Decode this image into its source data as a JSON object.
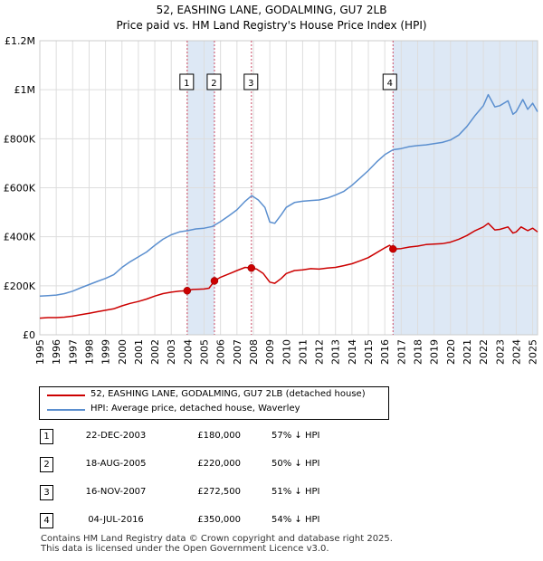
{
  "title": "52, EASHING LANE, GODALMING, GU7 2LB",
  "subtitle": "Price paid vs. HM Land Registry's House Price Index (HPI)",
  "colors": {
    "property": "#cc0000",
    "hpi": "#5b8fcf",
    "band": "#dde8f5",
    "grid": "#dddddd",
    "marker_line": "#cc4c66"
  },
  "chart_data": {
    "type": "line",
    "title": "52, EASHING LANE, GODALMING, GU7 2LB",
    "subtitle": "Price paid vs. HM Land Registry's House Price Index (HPI)",
    "xlabel": "",
    "ylabel": "",
    "xlim": [
      1995,
      2025.3
    ],
    "ylim": [
      0,
      1200000
    ],
    "yticks": [
      {
        "value": 0,
        "label": "£0"
      },
      {
        "value": 200000,
        "label": "£200K"
      },
      {
        "value": 400000,
        "label": "£400K"
      },
      {
        "value": 600000,
        "label": "£600K"
      },
      {
        "value": 800000,
        "label": "£800K"
      },
      {
        "value": 1000000,
        "label": "£1M"
      },
      {
        "value": 1200000,
        "label": "£1.2M"
      }
    ],
    "xticks": [
      "1995",
      "1996",
      "1997",
      "1998",
      "1999",
      "2000",
      "2001",
      "2002",
      "2003",
      "2004",
      "2005",
      "2006",
      "2007",
      "2008",
      "2009",
      "2010",
      "2011",
      "2012",
      "2013",
      "2014",
      "2015",
      "2016",
      "2017",
      "2018",
      "2019",
      "2020",
      "2021",
      "2022",
      "2023",
      "2024",
      "2025"
    ],
    "grid": true,
    "shaded_ranges": [
      [
        2003.97,
        2005.63
      ],
      [
        2016.5,
        2025.3
      ]
    ],
    "series": [
      {
        "name": "52, EASHING LANE, GODALMING, GU7 2LB (detached house)",
        "color": "#cc0000",
        "points": [
          [
            1995,
            68000
          ],
          [
            1995.5,
            70000
          ],
          [
            1996,
            70000
          ],
          [
            1996.5,
            72000
          ],
          [
            1997,
            76000
          ],
          [
            1997.5,
            82000
          ],
          [
            1998,
            88000
          ],
          [
            1998.5,
            94000
          ],
          [
            1999,
            100000
          ],
          [
            1999.5,
            106000
          ],
          [
            2000,
            118000
          ],
          [
            2000.5,
            128000
          ],
          [
            2001,
            136000
          ],
          [
            2001.5,
            146000
          ],
          [
            2002,
            158000
          ],
          [
            2002.5,
            168000
          ],
          [
            2003,
            174000
          ],
          [
            2003.5,
            178000
          ],
          [
            2003.97,
            180000
          ],
          [
            2004.3,
            185000
          ],
          [
            2004.7,
            186000
          ],
          [
            2005,
            187000
          ],
          [
            2005.3,
            190000
          ],
          [
            2005.63,
            220000
          ],
          [
            2006,
            235000
          ],
          [
            2006.5,
            248000
          ],
          [
            2007,
            262000
          ],
          [
            2007.5,
            275000
          ],
          [
            2007.88,
            272500
          ],
          [
            2008.2,
            268000
          ],
          [
            2008.6,
            250000
          ],
          [
            2009,
            215000
          ],
          [
            2009.3,
            210000
          ],
          [
            2009.7,
            230000
          ],
          [
            2010,
            250000
          ],
          [
            2010.5,
            262000
          ],
          [
            2011,
            265000
          ],
          [
            2011.5,
            270000
          ],
          [
            2012,
            268000
          ],
          [
            2012.5,
            272000
          ],
          [
            2013,
            275000
          ],
          [
            2013.5,
            282000
          ],
          [
            2014,
            290000
          ],
          [
            2014.5,
            302000
          ],
          [
            2015,
            315000
          ],
          [
            2015.5,
            335000
          ],
          [
            2016,
            355000
          ],
          [
            2016.3,
            365000
          ],
          [
            2016.5,
            350000
          ],
          [
            2017,
            352000
          ],
          [
            2017.5,
            358000
          ],
          [
            2018,
            362000
          ],
          [
            2018.5,
            368000
          ],
          [
            2019,
            370000
          ],
          [
            2019.5,
            372000
          ],
          [
            2020,
            378000
          ],
          [
            2020.5,
            390000
          ],
          [
            2021,
            405000
          ],
          [
            2021.5,
            425000
          ],
          [
            2022,
            440000
          ],
          [
            2022.3,
            455000
          ],
          [
            2022.7,
            428000
          ],
          [
            2023,
            430000
          ],
          [
            2023.5,
            440000
          ],
          [
            2023.8,
            415000
          ],
          [
            2024,
            420000
          ],
          [
            2024.3,
            440000
          ],
          [
            2024.7,
            425000
          ],
          [
            2025,
            435000
          ],
          [
            2025.3,
            420000
          ]
        ]
      },
      {
        "name": "HPI: Average price, detached house, Waverley",
        "color": "#5b8fcf",
        "points": [
          [
            1995,
            158000
          ],
          [
            1995.5,
            160000
          ],
          [
            1996,
            162000
          ],
          [
            1996.5,
            168000
          ],
          [
            1997,
            178000
          ],
          [
            1997.5,
            192000
          ],
          [
            1998,
            205000
          ],
          [
            1998.5,
            218000
          ],
          [
            1999,
            230000
          ],
          [
            1999.5,
            245000
          ],
          [
            2000,
            275000
          ],
          [
            2000.5,
            298000
          ],
          [
            2001,
            318000
          ],
          [
            2001.5,
            338000
          ],
          [
            2002,
            365000
          ],
          [
            2002.5,
            390000
          ],
          [
            2003,
            408000
          ],
          [
            2003.5,
            420000
          ],
          [
            2004,
            425000
          ],
          [
            2004.5,
            432000
          ],
          [
            2005,
            435000
          ],
          [
            2005.5,
            442000
          ],
          [
            2006,
            462000
          ],
          [
            2006.5,
            485000
          ],
          [
            2007,
            510000
          ],
          [
            2007.5,
            545000
          ],
          [
            2007.9,
            568000
          ],
          [
            2008.3,
            550000
          ],
          [
            2008.7,
            520000
          ],
          [
            2009,
            460000
          ],
          [
            2009.3,
            455000
          ],
          [
            2009.7,
            490000
          ],
          [
            2010,
            520000
          ],
          [
            2010.5,
            540000
          ],
          [
            2011,
            545000
          ],
          [
            2011.5,
            548000
          ],
          [
            2012,
            550000
          ],
          [
            2012.5,
            558000
          ],
          [
            2013,
            570000
          ],
          [
            2013.5,
            585000
          ],
          [
            2014,
            610000
          ],
          [
            2014.5,
            640000
          ],
          [
            2015,
            670000
          ],
          [
            2015.5,
            705000
          ],
          [
            2016,
            735000
          ],
          [
            2016.5,
            755000
          ],
          [
            2017,
            760000
          ],
          [
            2017.5,
            768000
          ],
          [
            2018,
            772000
          ],
          [
            2018.5,
            775000
          ],
          [
            2019,
            780000
          ],
          [
            2019.5,
            785000
          ],
          [
            2020,
            795000
          ],
          [
            2020.5,
            815000
          ],
          [
            2021,
            850000
          ],
          [
            2021.5,
            895000
          ],
          [
            2022,
            935000
          ],
          [
            2022.3,
            980000
          ],
          [
            2022.7,
            930000
          ],
          [
            2023,
            935000
          ],
          [
            2023.5,
            955000
          ],
          [
            2023.8,
            900000
          ],
          [
            2024,
            910000
          ],
          [
            2024.4,
            960000
          ],
          [
            2024.7,
            920000
          ],
          [
            2025,
            945000
          ],
          [
            2025.3,
            910000
          ]
        ]
      }
    ],
    "sales": [
      {
        "id": "1",
        "x": 2003.97,
        "price": 180000
      },
      {
        "id": "2",
        "x": 2005.63,
        "price": 220000
      },
      {
        "id": "3",
        "x": 2007.88,
        "price": 272500
      },
      {
        "id": "4",
        "x": 2016.5,
        "price": 350000
      }
    ]
  },
  "legend": [
    {
      "label": "52, EASHING LANE, GODALMING, GU7 2LB (detached house)",
      "color": "#cc0000"
    },
    {
      "label": "HPI: Average price, detached house, Waverley",
      "color": "#5b8fcf"
    }
  ],
  "sales_table": [
    {
      "num": "1",
      "date": "22-DEC-2003",
      "price": "£180,000",
      "hpi": "57% ↓ HPI"
    },
    {
      "num": "2",
      "date": "18-AUG-2005",
      "price": "£220,000",
      "hpi": "50% ↓ HPI"
    },
    {
      "num": "3",
      "date": "16-NOV-2007",
      "price": "£272,500",
      "hpi": "51% ↓ HPI"
    },
    {
      "num": "4",
      "date": "04-JUL-2016",
      "price": "£350,000",
      "hpi": "54% ↓ HPI"
    }
  ],
  "footer": {
    "line1": "Contains HM Land Registry data © Crown copyright and database right 2025.",
    "line2": "This data is licensed under the Open Government Licence v3.0."
  }
}
